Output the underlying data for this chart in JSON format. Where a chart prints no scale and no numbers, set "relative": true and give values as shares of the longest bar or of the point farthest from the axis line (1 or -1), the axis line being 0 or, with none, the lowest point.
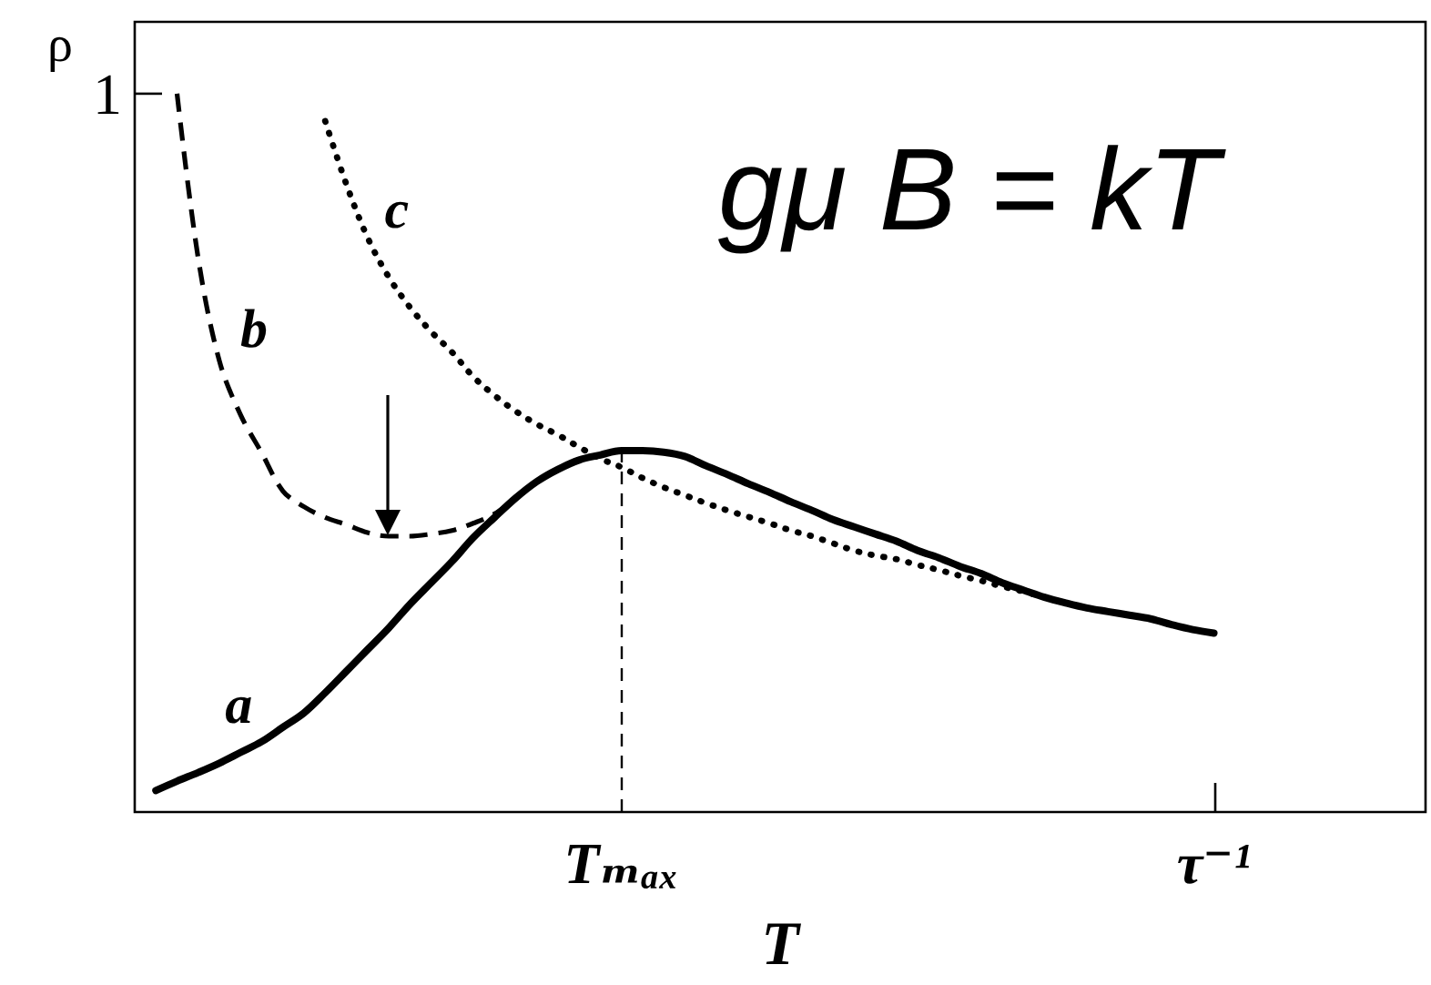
{
  "chart_data": {
    "type": "line",
    "relative": true,
    "categories": [
      null,
      null,
      null,
      null,
      null,
      null,
      null,
      null,
      null,
      null,
      null,
      null,
      null,
      null,
      null,
      null,
      null,
      null,
      null,
      null,
      null,
      null,
      null,
      "Tₘₐₓ",
      null,
      null,
      null,
      null,
      null,
      null,
      null,
      null,
      null,
      null,
      null,
      null,
      null,
      null,
      null,
      null,
      null,
      null,
      null,
      null,
      null,
      null,
      null,
      null,
      null,
      null,
      null,
      "τ⁻¹",
      null,
      null,
      null,
      null,
      null,
      null,
      null,
      null,
      null,
      null
    ],
    "series": [
      {
        "name": "a",
        "color": "#000000",
        "line_style": "solid",
        "values": [
          null,
          0.03,
          0.043,
          0.055,
          0.068,
          0.083,
          0.098,
          0.118,
          0.138,
          0.166,
          0.196,
          0.226,
          0.256,
          0.289,
          0.319,
          0.349,
          0.382,
          0.41,
          0.437,
          0.46,
          0.477,
          0.49,
          0.497,
          0.503,
          0.503,
          0.501,
          0.495,
          0.482,
          0.47,
          0.457,
          0.445,
          0.432,
          0.42,
          0.407,
          0.397,
          0.387,
          0.377,
          0.364,
          0.354,
          0.342,
          0.332,
          0.319,
          0.309,
          0.299,
          0.291,
          0.284,
          0.279,
          0.274,
          0.269,
          0.261,
          0.254,
          0.249,
          null,
          null,
          null,
          null,
          null,
          null,
          null,
          null,
          null,
          null
        ]
      },
      {
        "name": "b",
        "color": "#000000",
        "line_style": "dashed",
        "values": [
          null,
          null,
          1,
          0.771,
          0.628,
          0.553,
          0.5,
          0.447,
          0.425,
          0.41,
          0.4,
          0.389,
          0.384,
          0.384,
          0.387,
          0.392,
          0.402,
          0.415,
          0.437,
          null,
          null,
          null,
          null,
          null,
          null,
          null,
          null,
          null,
          null,
          null,
          null,
          null,
          null,
          null,
          null,
          null,
          null,
          null,
          null,
          null,
          null,
          null,
          null,
          null,
          null,
          null,
          null,
          null,
          null,
          null,
          null,
          null,
          null,
          null,
          null,
          null,
          null,
          null,
          null,
          null,
          null,
          null
        ]
      },
      {
        "name": "c",
        "color": "#000000",
        "line_style": "dotted",
        "values": [
          null,
          null,
          null,
          null,
          null,
          null,
          null,
          null,
          null,
          0.962,
          0.874,
          0.8,
          0.745,
          0.703,
          0.669,
          0.64,
          0.606,
          0.58,
          0.558,
          0.54,
          0.525,
          0.508,
          0.492,
          0.48,
          0.465,
          0.452,
          0.441,
          0.43,
          0.42,
          0.411,
          0.402,
          0.392,
          0.384,
          0.374,
          0.364,
          0.357,
          0.352,
          0.344,
          0.337,
          0.329,
          0.322,
          0.314,
          0.307,
          0.299,
          null,
          null,
          null,
          null,
          null,
          null,
          null,
          null,
          null,
          null,
          null,
          null,
          null,
          null,
          null,
          null,
          null,
          null
        ]
      }
    ],
    "xlabel": "T",
    "ylabel": "ρ",
    "ref_lines": [
      {
        "axis": "x",
        "value": "Tₘₐₓ",
        "line_style": "dashed",
        "color": "#000000"
      }
    ],
    "annotations": [
      "gμ B = kT",
      "1"
    ],
    "marker": "none",
    "grid": false
  }
}
